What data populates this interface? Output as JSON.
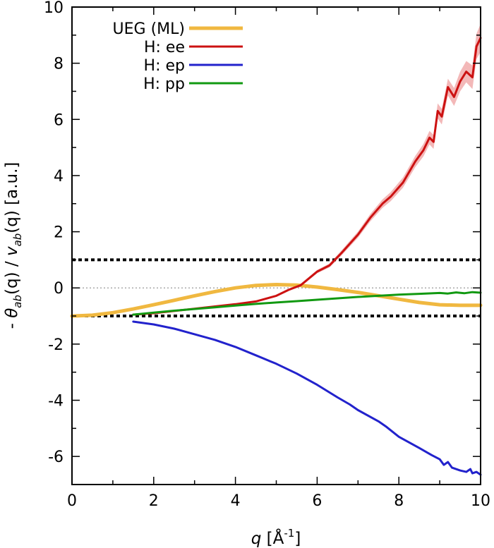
{
  "chart_data": {
    "type": "line",
    "xlabel": "q [Å⁻¹]",
    "xlabel_parts": {
      "var": "q",
      "unit_open": " [Å",
      "exp": "-1",
      "unit_close": "]"
    },
    "ylabel": "- θab(q) / vab(q) [a.u.]",
    "ylabel_parts": {
      "prefix": "- ",
      "theta": "θ",
      "sub1": "ab",
      "mid": "(q) / ",
      "v": "v",
      "sub2": "ab",
      "suffix": "(q) [a.u.]"
    },
    "xlim": [
      0,
      10
    ],
    "ylim": [
      -7,
      10
    ],
    "xticks": [
      0,
      2,
      4,
      6,
      8,
      10
    ],
    "yticks": [
      -6,
      -4,
      -2,
      0,
      2,
      4,
      6,
      8,
      10
    ],
    "legend_position": "top-left",
    "reference_lines": [
      {
        "y": 1,
        "style": "thick-dotted",
        "color": "#000000"
      },
      {
        "y": -1,
        "style": "thick-dotted",
        "color": "#000000"
      },
      {
        "y": 0,
        "style": "thin-dotted",
        "color": "#999999"
      }
    ],
    "series": [
      {
        "name": "UEG (ML)",
        "color": "#f0b840",
        "width": 5,
        "x": [
          0,
          0.5,
          1,
          1.5,
          2,
          2.5,
          3,
          3.5,
          4,
          4.5,
          5,
          5.5,
          6,
          6.5,
          7,
          7.5,
          8,
          8.5,
          9,
          9.5,
          10
        ],
        "y": [
          -1.0,
          -0.97,
          -0.88,
          -0.75,
          -0.6,
          -0.44,
          -0.28,
          -0.13,
          0.0,
          0.09,
          0.12,
          0.1,
          0.03,
          -0.06,
          -0.16,
          -0.28,
          -0.4,
          -0.52,
          -0.6,
          -0.62,
          -0.62
        ]
      },
      {
        "name": "H: ee",
        "color": "#cc1111",
        "width": 3,
        "band_color": "#f3b8b8",
        "x": [
          1.5,
          2,
          2.5,
          3,
          3.5,
          4,
          4.5,
          5,
          5.3,
          5.6,
          6,
          6.3,
          6.6,
          7,
          7.3,
          7.6,
          7.8,
          8.1,
          8.4,
          8.6,
          8.75,
          8.85,
          8.95,
          9.05,
          9.2,
          9.35,
          9.5,
          9.65,
          9.8,
          9.9,
          10
        ],
        "y": [
          -0.95,
          -0.9,
          -0.82,
          -0.74,
          -0.66,
          -0.58,
          -0.48,
          -0.28,
          -0.07,
          0.1,
          0.58,
          0.8,
          1.25,
          1.9,
          2.5,
          3.0,
          3.25,
          3.75,
          4.5,
          4.9,
          5.35,
          5.2,
          6.3,
          6.1,
          7.15,
          6.8,
          7.35,
          7.7,
          7.5,
          8.6,
          8.9
        ],
        "err": [
          0.01,
          0.01,
          0.01,
          0.01,
          0.01,
          0.02,
          0.02,
          0.03,
          0.04,
          0.05,
          0.06,
          0.07,
          0.09,
          0.11,
          0.13,
          0.15,
          0.16,
          0.18,
          0.2,
          0.22,
          0.24,
          0.25,
          0.27,
          0.28,
          0.3,
          0.32,
          0.35,
          0.38,
          0.42,
          0.45,
          0.5
        ]
      },
      {
        "name": "H: ep",
        "color": "#2222cc",
        "width": 3,
        "x": [
          1.5,
          2,
          2.5,
          3,
          3.5,
          4,
          4.5,
          5,
          5.5,
          6,
          6.5,
          6.8,
          7,
          7.5,
          7.7,
          8,
          8.5,
          8.8,
          9,
          9.1,
          9.2,
          9.3,
          9.5,
          9.65,
          9.75,
          9.8,
          9.9,
          10
        ],
        "y": [
          -1.2,
          -1.3,
          -1.45,
          -1.65,
          -1.85,
          -2.1,
          -2.4,
          -2.7,
          -3.05,
          -3.45,
          -3.9,
          -4.15,
          -4.35,
          -4.75,
          -4.95,
          -5.3,
          -5.7,
          -5.95,
          -6.1,
          -6.3,
          -6.2,
          -6.4,
          -6.5,
          -6.55,
          -6.45,
          -6.6,
          -6.55,
          -6.65
        ]
      },
      {
        "name": "H: pp",
        "color": "#119911",
        "width": 3,
        "x": [
          1.5,
          2,
          2.5,
          3,
          3.5,
          4,
          4.5,
          5,
          5.5,
          6,
          6.5,
          7,
          7.5,
          8,
          8.5,
          9,
          9.2,
          9.4,
          9.6,
          9.8,
          10
        ],
        "y": [
          -0.95,
          -0.88,
          -0.81,
          -0.75,
          -0.69,
          -0.63,
          -0.57,
          -0.52,
          -0.47,
          -0.42,
          -0.37,
          -0.32,
          -0.28,
          -0.24,
          -0.21,
          -0.18,
          -0.2,
          -0.16,
          -0.19,
          -0.15,
          -0.17
        ]
      }
    ]
  }
}
